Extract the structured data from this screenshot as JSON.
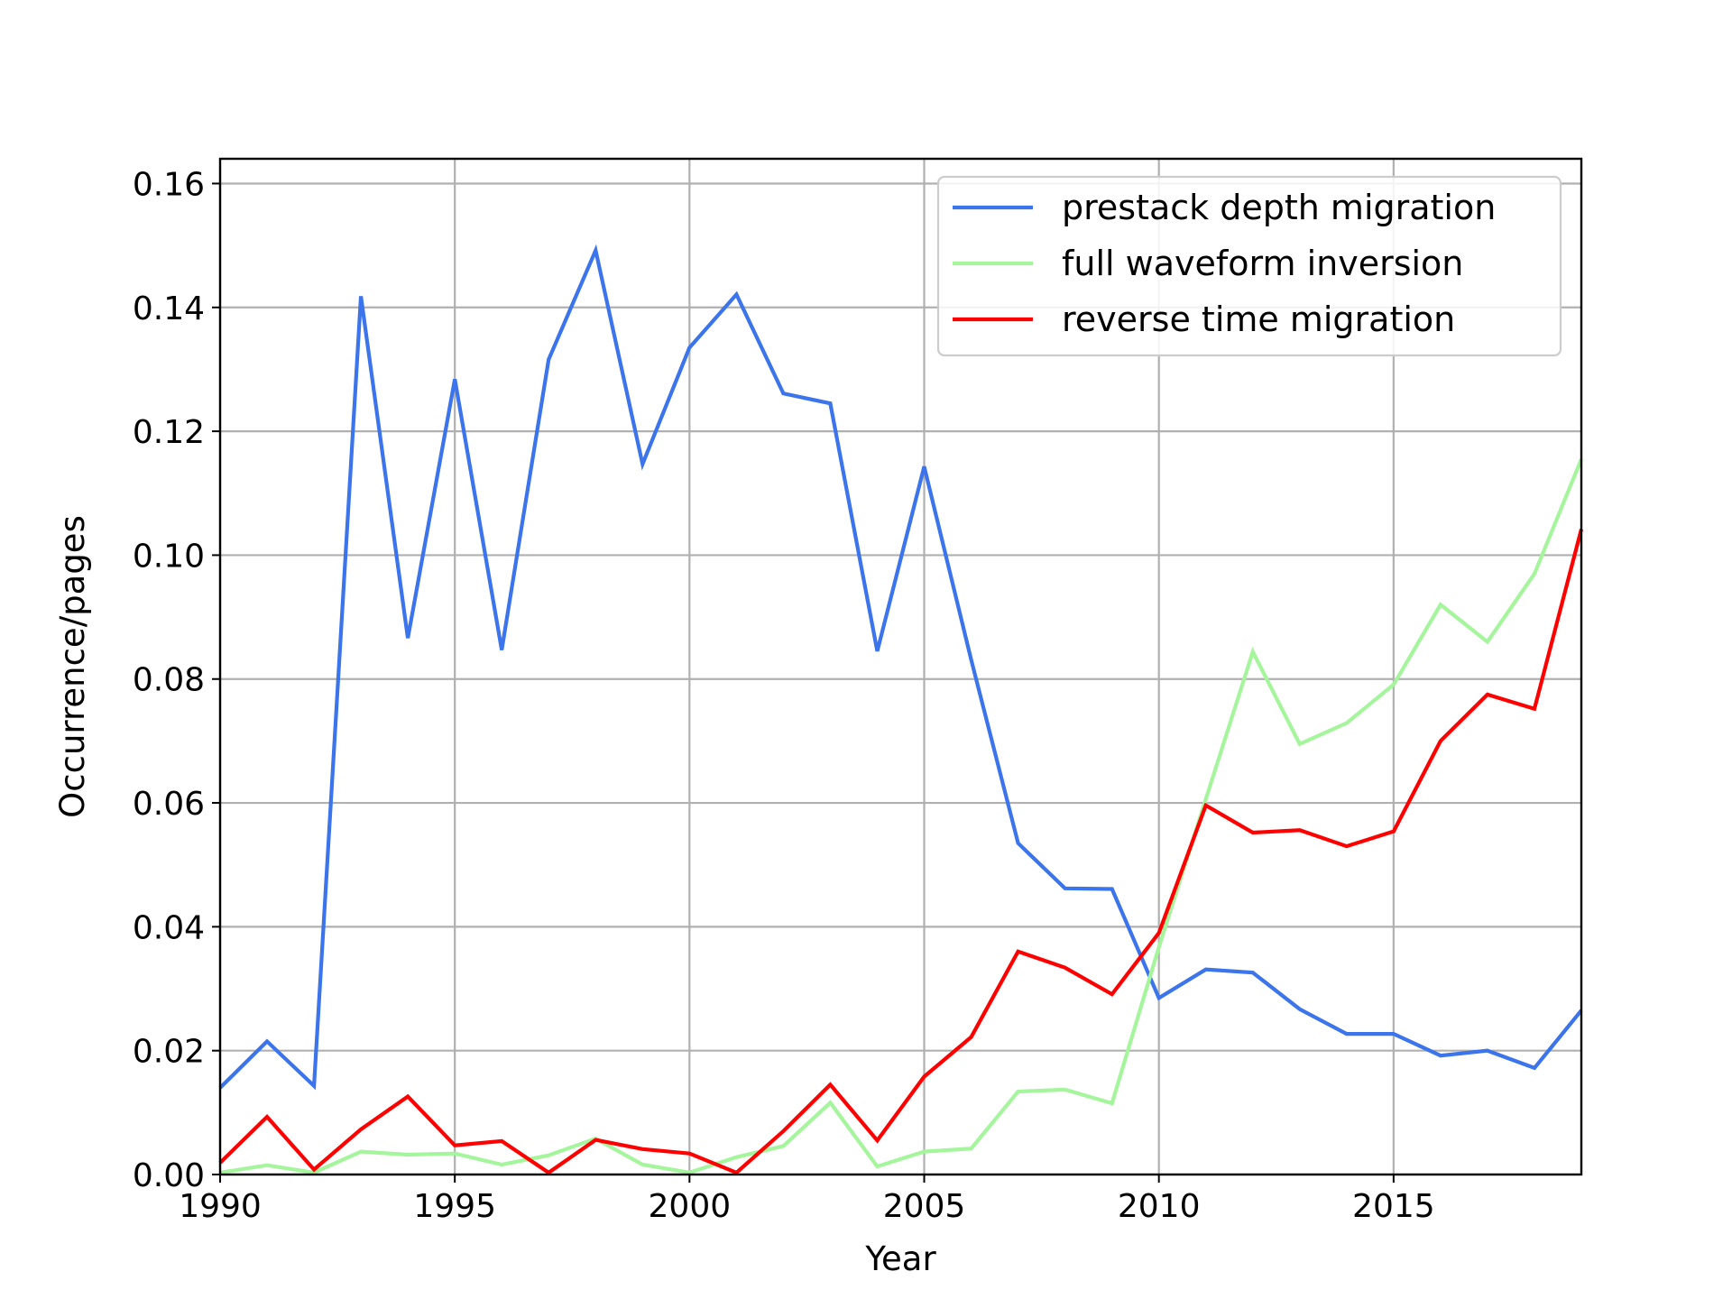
{
  "chart_data": {
    "type": "line",
    "xlabel": "Year",
    "ylabel": "Occurrence/pages",
    "xlim": [
      1990,
      2019
    ],
    "ylim": [
      0,
      0.164
    ],
    "grid": true,
    "legend_position": "top-right",
    "x_ticks": [
      1990,
      1995,
      2000,
      2005,
      2010,
      2015
    ],
    "x_tick_labels": [
      "1990",
      "1995",
      "2000",
      "2005",
      "2010",
      "2015"
    ],
    "y_ticks": [
      0,
      0.02,
      0.04,
      0.06,
      0.08,
      0.1,
      0.12,
      0.14,
      0.16
    ],
    "y_tick_labels": [
      "0.00",
      "0.02",
      "0.04",
      "0.06",
      "0.08",
      "0.10",
      "0.12",
      "0.14",
      "0.16"
    ],
    "x": [
      1990,
      1991,
      1992,
      1993,
      1994,
      1995,
      1996,
      1997,
      1998,
      1999,
      2000,
      2001,
      2002,
      2003,
      2004,
      2005,
      2006,
      2007,
      2008,
      2009,
      2010,
      2011,
      2012,
      2013,
      2014,
      2015,
      2016,
      2017,
      2018,
      2019
    ],
    "series": [
      {
        "name": "prestack depth migration",
        "color": "#3b74eb",
        "values": [
          0.014,
          0.0215,
          0.0143,
          0.1418,
          0.0866,
          0.1284,
          0.0847,
          0.1316,
          0.1492,
          0.1147,
          0.1335,
          0.1421,
          0.1261,
          0.1245,
          0.0845,
          0.1143,
          0.0831,
          0.0535,
          0.0462,
          0.0461,
          0.0285,
          0.0331,
          0.0326,
          0.0267,
          0.0227,
          0.0227,
          0.0192,
          0.02,
          0.0172,
          0.0265
        ]
      },
      {
        "name": "full waveform inversion",
        "color": "#a4f59b",
        "values": [
          0.0003,
          0.0015,
          0.0003,
          0.0037,
          0.0032,
          0.0034,
          0.0016,
          0.0031,
          0.0058,
          0.0016,
          0.0003,
          0.0028,
          0.0046,
          0.0116,
          0.0013,
          0.0037,
          0.0042,
          0.0134,
          0.0137,
          0.0115,
          0.0367,
          0.0606,
          0.0844,
          0.0695,
          0.0729,
          0.0791,
          0.092,
          0.086,
          0.097,
          0.1155
        ]
      },
      {
        "name": "reverse time migration",
        "color": "#ff0000",
        "values": [
          0.0019,
          0.0093,
          0.0008,
          0.0073,
          0.0126,
          0.0047,
          0.0054,
          0.0003,
          0.0056,
          0.0041,
          0.0034,
          0.0003,
          0.007,
          0.0145,
          0.0055,
          0.0158,
          0.0222,
          0.036,
          0.0334,
          0.0291,
          0.039,
          0.0596,
          0.0552,
          0.0556,
          0.053,
          0.0554,
          0.07,
          0.0775,
          0.0752,
          0.1042
        ]
      }
    ]
  }
}
